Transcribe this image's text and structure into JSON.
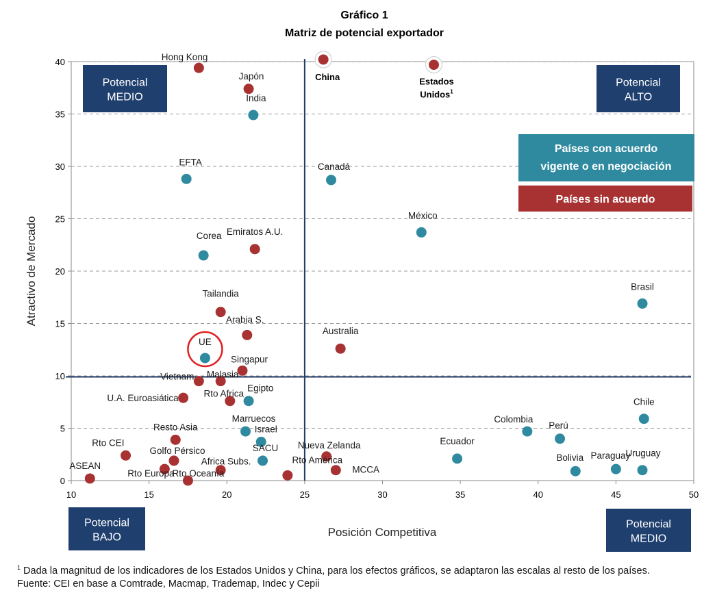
{
  "chart_data": {
    "type": "scatter",
    "title": "Gráfico 1",
    "subtitle": "Matriz de potencial exportador",
    "xlabel": "Posición Competitiva",
    "ylabel": "Atractivo de Mercado",
    "xlim": [
      10,
      50
    ],
    "ylim": [
      0,
      40
    ],
    "xticks": [
      "10",
      "15",
      "20",
      "25",
      "30",
      "35",
      "40",
      "45",
      "50"
    ],
    "yticks": [
      "0",
      "5",
      "10",
      "15",
      "20",
      "25",
      "30",
      "35",
      "40"
    ],
    "divider": {
      "x": 25,
      "y": 9.9
    },
    "grid": "horizontal-dashed",
    "colors": {
      "agreement": "#2f8aa0",
      "no_agreement": "#a83232",
      "quadrant_box": "#1f3f6e",
      "divider": "#1f3a64",
      "highlight_ring": "#e02020"
    },
    "quadrants": [
      {
        "line1": "Potencial",
        "line2": "MEDIO",
        "position": "top-left"
      },
      {
        "line1": "Potencial",
        "line2": "ALTO",
        "position": "top-right"
      },
      {
        "line1": "Potencial",
        "line2": "BAJO",
        "position": "bottom-left"
      },
      {
        "line1": "Potencial",
        "line2": "MEDIO",
        "position": "bottom-right"
      }
    ],
    "legend": {
      "agreement_line1": "Países con acuerdo",
      "agreement_line2": "vigente o en negociación",
      "no_agreement": "Países sin acuerdo",
      "position": "right"
    },
    "series": [
      {
        "name": "Países con acuerdo vigente o en negociación",
        "key": "agreement",
        "points": [
          {
            "label": "India",
            "x": 21.7,
            "y": 34.9
          },
          {
            "label": "EFTA",
            "x": 17.4,
            "y": 28.8
          },
          {
            "label": "Canadá",
            "x": 26.7,
            "y": 28.7
          },
          {
            "label": "México",
            "x": 32.5,
            "y": 23.7
          },
          {
            "label": "Corea",
            "x": 18.5,
            "y": 21.5
          },
          {
            "label": "Brasil",
            "x": 46.7,
            "y": 16.9
          },
          {
            "label": "UE",
            "x": 18.6,
            "y": 11.7,
            "highlight": true
          },
          {
            "label": "Egipto",
            "x": 21.4,
            "y": 7.6
          },
          {
            "label": "Chile",
            "x": 46.8,
            "y": 5.9
          },
          {
            "label": "Marruecos",
            "x": 21.2,
            "y": 4.7
          },
          {
            "label": "Colombia",
            "x": 39.3,
            "y": 4.7
          },
          {
            "label": "Perú",
            "x": 41.4,
            "y": 4.0
          },
          {
            "label": "Israel",
            "x": 22.2,
            "y": 3.7
          },
          {
            "label": "Ecuador",
            "x": 34.8,
            "y": 2.1
          },
          {
            "label": "SACU",
            "x": 22.3,
            "y": 1.9
          },
          {
            "label": "Bolivia",
            "x": 42.4,
            "y": 0.9
          },
          {
            "label": "Paraguay",
            "x": 45.0,
            "y": 1.1
          },
          {
            "label": "Uruguay",
            "x": 46.7,
            "y": 1.0
          }
        ]
      },
      {
        "name": "Países sin acuerdo",
        "key": "no_agreement",
        "points": [
          {
            "label": "Hong Kong",
            "x": 18.2,
            "y": 39.4
          },
          {
            "label": "China",
            "x": 26.2,
            "y": 40.2,
            "bold": true,
            "ring": true
          },
          {
            "label": "Estados",
            "label2": "Unidos",
            "footnote_mark": "1",
            "x": 33.3,
            "y": 39.7,
            "bold": true,
            "ring": true
          },
          {
            "label": "Japón",
            "x": 21.4,
            "y": 37.4
          },
          {
            "label": "Emiratos A.U.",
            "x": 21.8,
            "y": 22.1
          },
          {
            "label": "Tailandia",
            "x": 19.6,
            "y": 16.1
          },
          {
            "label": "Arabia S.",
            "x": 21.3,
            "y": 13.9
          },
          {
            "label": "Australia",
            "x": 27.3,
            "y": 12.6
          },
          {
            "label": "Singapur",
            "x": 21.0,
            "y": 10.5
          },
          {
            "label": "Vietnam",
            "x": 18.2,
            "y": 9.5
          },
          {
            "label": "Malasia",
            "x": 19.6,
            "y": 9.5
          },
          {
            "label": "U.A. Euroasiática",
            "x": 17.2,
            "y": 7.9
          },
          {
            "label": "Rto Africa",
            "x": 20.2,
            "y": 7.6
          },
          {
            "label": "Resto Asia",
            "x": 16.7,
            "y": 3.9
          },
          {
            "label": "Rto CEI",
            "x": 13.5,
            "y": 2.4
          },
          {
            "label": "Golfo Pérsico",
            "x": 16.6,
            "y": 1.9
          },
          {
            "label": "Nueva Zelanda",
            "x": 26.4,
            "y": 2.3
          },
          {
            "label": "Africa Subs.",
            "x": 19.6,
            "y": 1.0
          },
          {
            "label": "Rto América",
            "x": 27.0,
            "y": 1.0
          },
          {
            "label": "MCCA",
            "x": 27.0,
            "y": 1.0,
            "label_only_offset": true
          },
          {
            "label": "ASEAN",
            "x": 11.2,
            "y": 0.2
          },
          {
            "label": "Rto Europa",
            "x": 16.0,
            "y": 1.1
          },
          {
            "label": "Rto Oceanía",
            "x": 17.5,
            "y": 0.0
          },
          {
            "label": "Otro",
            "x": 23.9,
            "y": 0.5,
            "hide_label": true
          }
        ]
      }
    ]
  },
  "footnote": {
    "mark": "1",
    "text": " Dada la magnitud de los indicadores de los Estados Unidos y China, para los efectos gráficos, se adaptaron las escalas al resto de los países.",
    "source": "Fuente: CEI en base a Comtrade, Macmap, Trademap, Indec y Cepii"
  }
}
